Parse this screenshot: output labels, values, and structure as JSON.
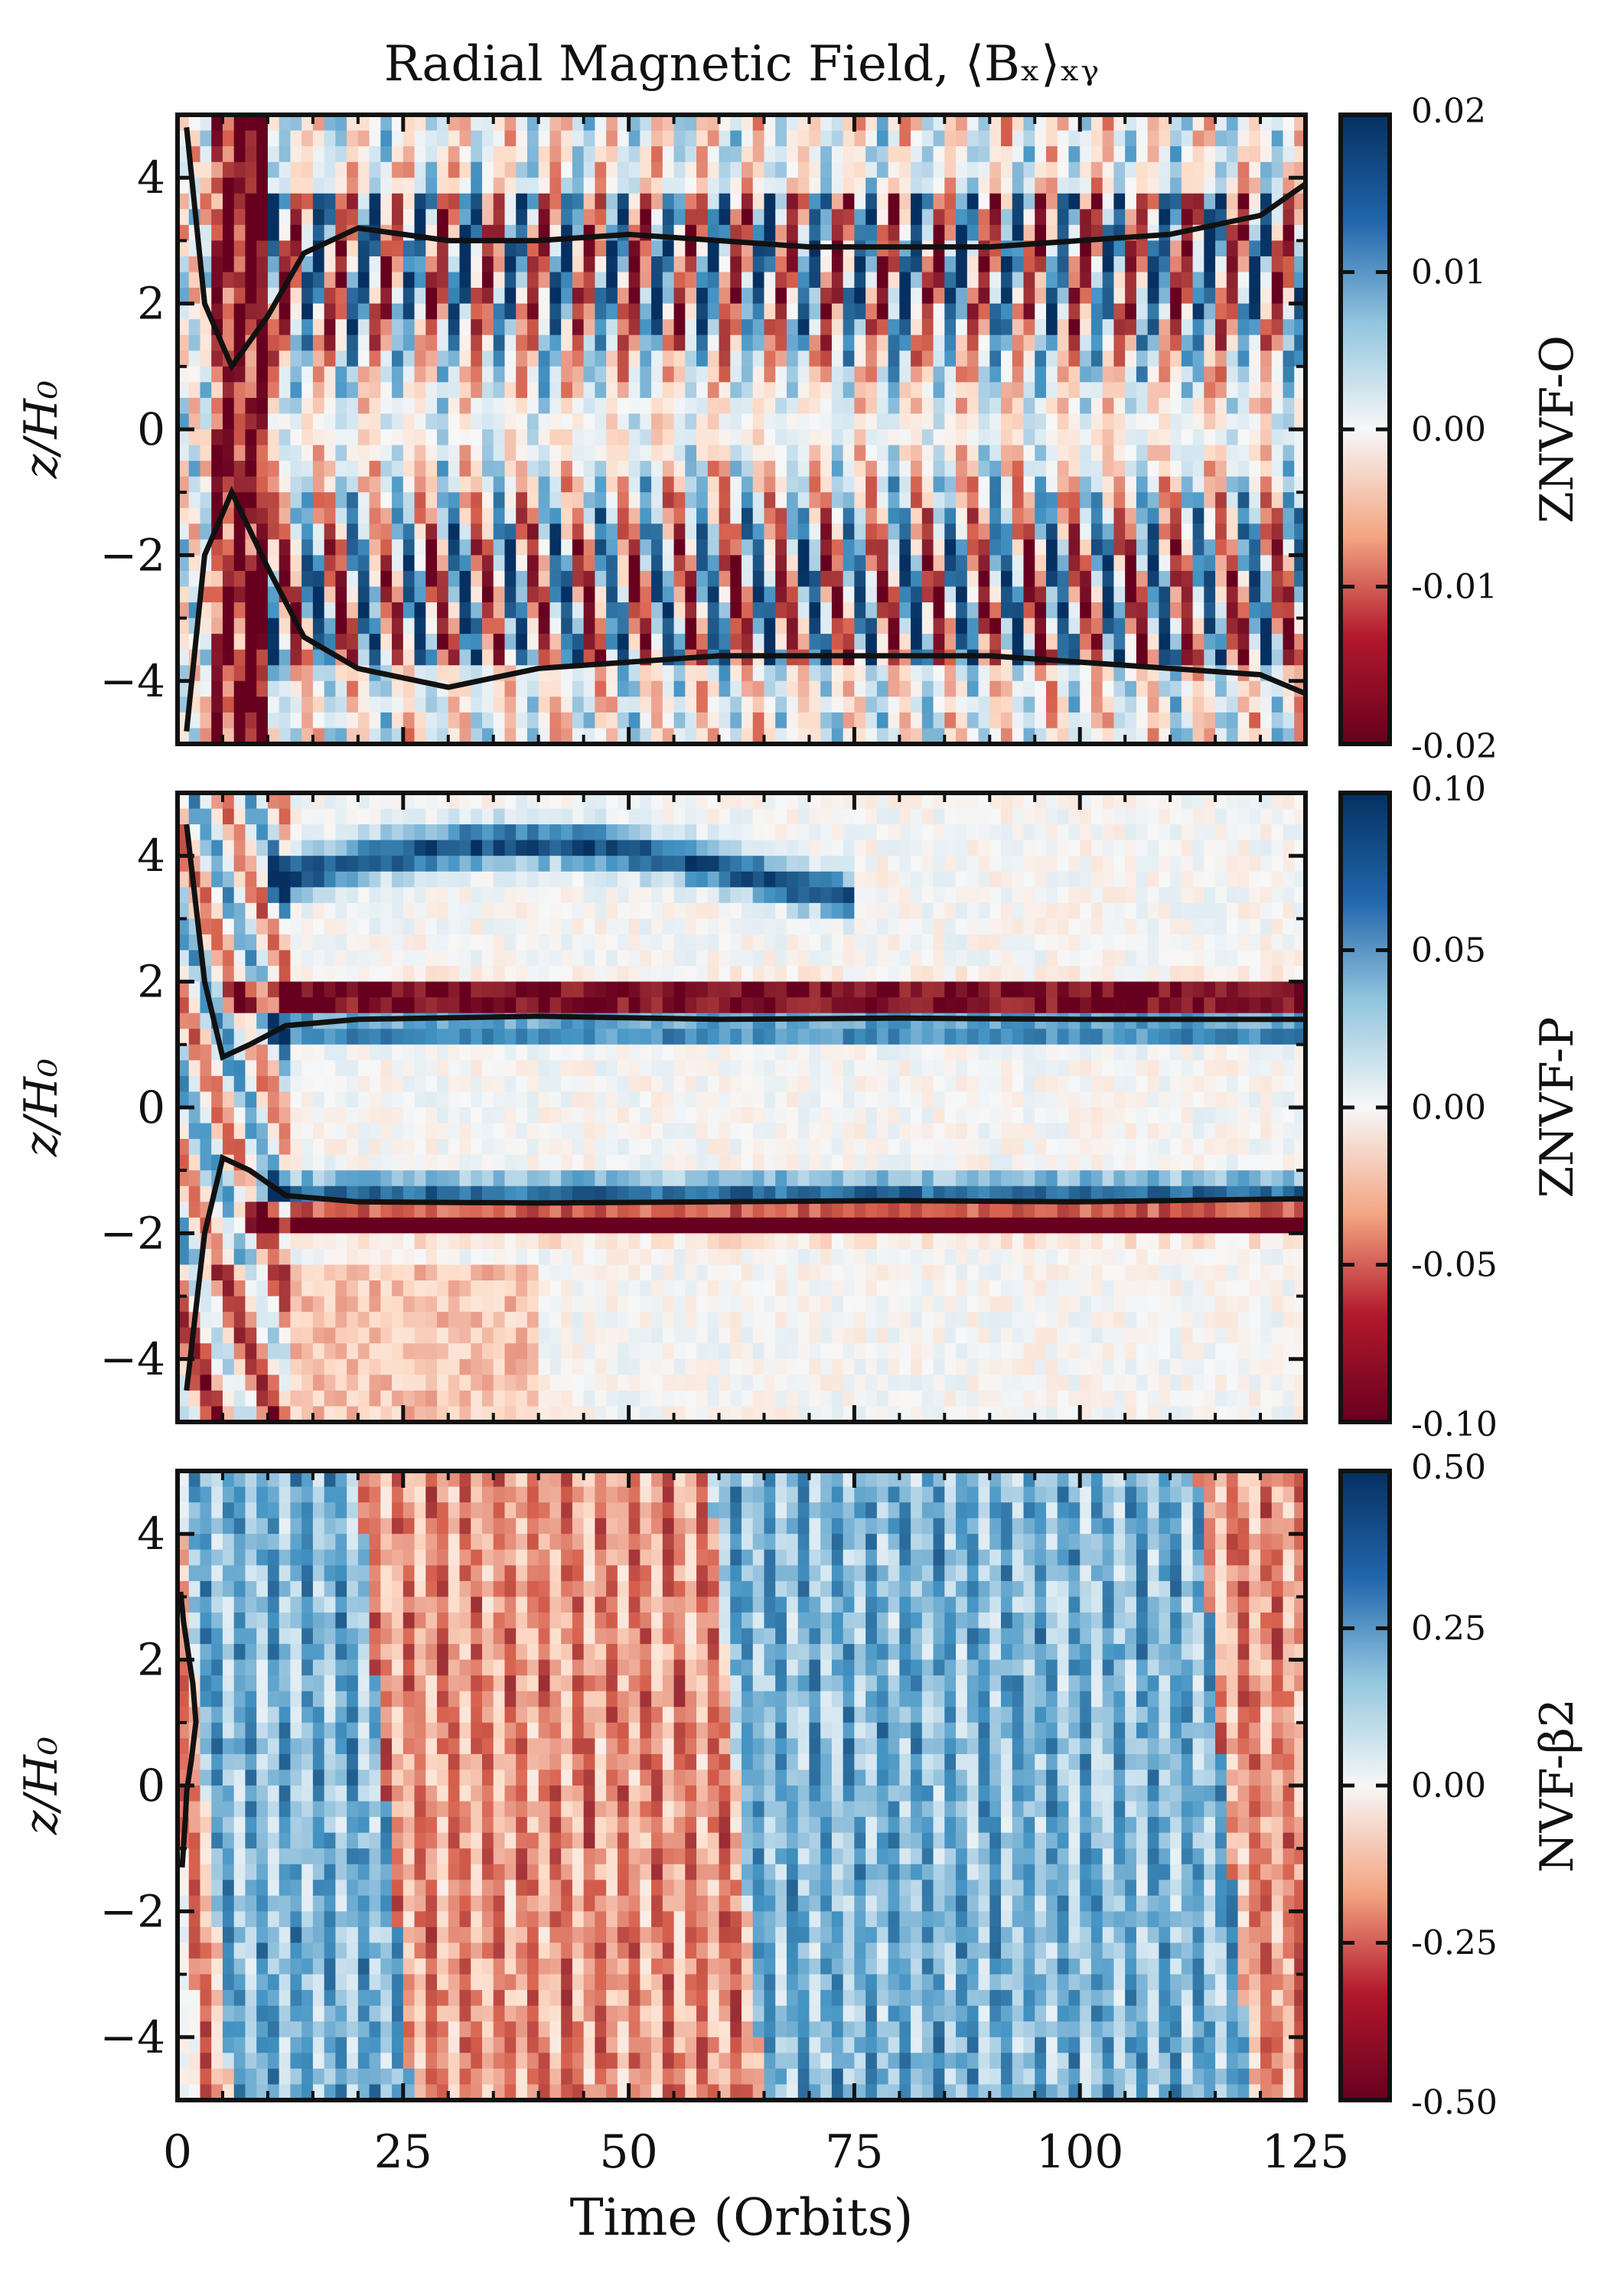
{
  "figure": {
    "title": "Radial Magnetic Field, ⟨Bₓ⟩ₓᵧ",
    "x_label": "Time (Orbits)",
    "y_label": "z/H₀"
  },
  "colors": {
    "neg_strong": "#67001f",
    "neg_mid": "#d6604d",
    "neg_light": "#fddbc7",
    "zero": "#f7f7f7",
    "pos_light": "#d1e5f0",
    "pos_mid": "#4393c3",
    "pos_strong": "#053061",
    "contour": "#111111"
  },
  "chart_data": [
    {
      "type": "heatmap",
      "panel": "ZNVF-O",
      "title": "Radial Magnetic Field, ⟨Bₓ⟩ₓᵧ",
      "xlabel": "Time (Orbits)",
      "ylabel": "z/H₀",
      "xlim": [
        0,
        125
      ],
      "ylim": [
        -5,
        5
      ],
      "x_ticks": [
        0,
        25,
        50,
        75,
        100,
        125
      ],
      "y_ticks": [
        -4,
        -2,
        0,
        2,
        4
      ],
      "colorbar": {
        "label": "ZNVF-O",
        "range": [
          -0.02,
          0.02
        ],
        "ticks": [
          "0.02",
          "0.01",
          "0.00",
          "-0.01",
          "-0.02"
        ]
      },
      "pattern": "dynamo butterfly: alternating-sign bands migrating from midplane outward with period ~5.5 orbits",
      "contour_upper": [
        [
          1,
          4.8
        ],
        [
          3,
          2.0
        ],
        [
          6,
          1.0
        ],
        [
          10,
          1.8
        ],
        [
          14,
          2.8
        ],
        [
          20,
          3.2
        ],
        [
          30,
          3.0
        ],
        [
          40,
          3.0
        ],
        [
          50,
          3.1
        ],
        [
          60,
          3.0
        ],
        [
          70,
          2.9
        ],
        [
          80,
          2.9
        ],
        [
          90,
          2.9
        ],
        [
          100,
          3.0
        ],
        [
          110,
          3.1
        ],
        [
          120,
          3.4
        ],
        [
          125,
          3.9
        ]
      ],
      "contour_lower": [
        [
          1,
          -4.8
        ],
        [
          3,
          -2.0
        ],
        [
          6,
          -1.0
        ],
        [
          10,
          -2.2
        ],
        [
          14,
          -3.3
        ],
        [
          20,
          -3.8
        ],
        [
          30,
          -4.1
        ],
        [
          40,
          -3.8
        ],
        [
          50,
          -3.7
        ],
        [
          60,
          -3.6
        ],
        [
          70,
          -3.6
        ],
        [
          80,
          -3.6
        ],
        [
          90,
          -3.6
        ],
        [
          100,
          -3.7
        ],
        [
          110,
          -3.8
        ],
        [
          120,
          -3.9
        ],
        [
          125,
          -4.2
        ]
      ]
    },
    {
      "type": "heatmap",
      "panel": "ZNVF-P",
      "xlabel": "Time (Orbits)",
      "ylabel": "z/H₀",
      "xlim": [
        0,
        125
      ],
      "ylim": [
        -5,
        5
      ],
      "x_ticks": [
        0,
        25,
        50,
        75,
        100,
        125
      ],
      "y_ticks": [
        -4,
        -2,
        0,
        2,
        4
      ],
      "colorbar": {
        "label": "ZNVF-P",
        "range": [
          -0.1,
          0.1
        ],
        "ticks": [
          "0.10",
          "0.05",
          "0.00",
          "-0.05",
          "-0.10"
        ]
      },
      "pattern": "steady bands: negative at z≈+1.7 and z≈-1.8, positive at z≈+1.3 and z≈-1.3, positive blob near z≈+3.8 early",
      "contour_upper": [
        [
          1,
          4.5
        ],
        [
          3,
          2.0
        ],
        [
          5,
          0.8
        ],
        [
          8,
          1.0
        ],
        [
          12,
          1.3
        ],
        [
          20,
          1.4
        ],
        [
          40,
          1.45
        ],
        [
          60,
          1.4
        ],
        [
          80,
          1.42
        ],
        [
          100,
          1.4
        ],
        [
          125,
          1.4
        ]
      ],
      "contour_lower": [
        [
          1,
          -4.5
        ],
        [
          3,
          -2.0
        ],
        [
          5,
          -0.8
        ],
        [
          8,
          -1.0
        ],
        [
          12,
          -1.4
        ],
        [
          20,
          -1.5
        ],
        [
          40,
          -1.52
        ],
        [
          60,
          -1.5
        ],
        [
          80,
          -1.48
        ],
        [
          100,
          -1.5
        ],
        [
          125,
          -1.45
        ]
      ]
    },
    {
      "type": "heatmap",
      "panel": "NVF-β2",
      "xlabel": "Time (Orbits)",
      "ylabel": "z/H₀",
      "xlim": [
        0,
        125
      ],
      "ylim": [
        -5,
        5
      ],
      "x_ticks": [
        0,
        25,
        50,
        75,
        100,
        125
      ],
      "y_ticks": [
        -4,
        -2,
        0,
        2,
        4
      ],
      "colorbar": {
        "label": "NVF-β2",
        "range": [
          -0.5,
          0.5
        ],
        "ticks": [
          "0.50",
          "0.25",
          "0.00",
          "-0.25",
          "-0.50"
        ]
      },
      "segments": [
        {
          "t_start": 0,
          "t_end": 3,
          "sign": "negative"
        },
        {
          "t_start": 3,
          "t_end": 23,
          "sign": "positive"
        },
        {
          "t_start": 23,
          "t_end": 62,
          "sign": "negative"
        },
        {
          "t_start": 62,
          "t_end": 116,
          "sign": "positive"
        },
        {
          "t_start": 116,
          "t_end": 125,
          "sign": "negative"
        }
      ]
    }
  ],
  "x_tick_labels": [
    "0",
    "25",
    "50",
    "75",
    "100",
    "125"
  ],
  "y_tick_labels": [
    "−4",
    "−2",
    "0",
    "2",
    "4"
  ]
}
